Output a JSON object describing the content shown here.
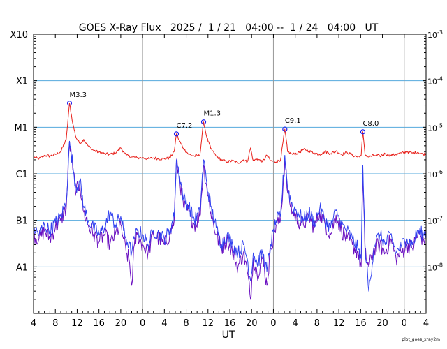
{
  "chart_data": {
    "type": "line",
    "title": "GOES X-Ray Flux   2025 /  1 / 21   04:00 --  1 / 24   04:00   UT",
    "xlabel": "UT",
    "footer": "plot_goes_xray2m",
    "x_range_hours": [
      0,
      72
    ],
    "y_scale": "log",
    "ylim": [
      1e-09,
      0.001
    ],
    "x_ticks": [
      "4",
      "8",
      "12",
      "16",
      "20",
      "0",
      "4",
      "8",
      "12",
      "16",
      "20",
      "0",
      "4",
      "8",
      "12",
      "16",
      "20",
      "0",
      "4"
    ],
    "x_tick_hours": [
      0,
      4,
      8,
      12,
      16,
      20,
      24,
      28,
      32,
      36,
      40,
      44,
      48,
      52,
      56,
      60,
      64,
      68,
      72
    ],
    "day_boundaries_hours": [
      20,
      44,
      68
    ],
    "left_axis": {
      "labels": [
        "X10",
        "X1",
        "M1",
        "C1",
        "B1",
        "A1"
      ],
      "values": [
        0.001,
        0.0001,
        1e-05,
        1e-06,
        1e-07,
        1e-08
      ]
    },
    "right_axis": {
      "labels": [
        {
          "base": "10",
          "exp": "-3",
          "value": 0.001
        },
        {
          "base": "10",
          "exp": "-4",
          "value": 0.0001
        },
        {
          "base": "10",
          "exp": "-5",
          "value": 1e-05
        },
        {
          "base": "10",
          "exp": "-6",
          "value": 1e-06
        },
        {
          "base": "10",
          "exp": "-7",
          "value": 1e-07
        },
        {
          "base": "10",
          "exp": "-8",
          "value": 1e-08
        }
      ]
    },
    "grid_lines": [
      0.0001,
      1e-05,
      1e-06,
      1e-07,
      1e-08
    ],
    "flares": [
      {
        "label": "M3.3",
        "hour": 6.6,
        "flux": 3.3e-05
      },
      {
        "label": "C7.2",
        "hour": 26.2,
        "flux": 7.2e-06
      },
      {
        "label": "M1.3",
        "hour": 31.2,
        "flux": 1.3e-05
      },
      {
        "label": "C9.1",
        "hour": 46.1,
        "flux": 9.1e-06
      },
      {
        "label": "C8.0",
        "hour": 60.4,
        "flux": 8e-06
      }
    ],
    "series": [
      {
        "color": "#e8201a",
        "points": [
          [
            0,
            2.3e-06
          ],
          [
            1,
            2.1e-06
          ],
          [
            2,
            2.5e-06
          ],
          [
            3,
            2.4e-06
          ],
          [
            4,
            2.6e-06
          ],
          [
            5,
            3e-06
          ],
          [
            6,
            5.5e-06
          ],
          [
            6.6,
            3.3e-05
          ],
          [
            7.2,
            1.2e-05
          ],
          [
            7.8,
            6e-06
          ],
          [
            8.5,
            4.5e-06
          ],
          [
            9.2,
            5.5e-06
          ],
          [
            10,
            4e-06
          ],
          [
            11,
            3.2e-06
          ],
          [
            12,
            2.9e-06
          ],
          [
            13,
            2.7e-06
          ],
          [
            14,
            2.6e-06
          ],
          [
            15,
            2.8e-06
          ],
          [
            16,
            3.6e-06
          ],
          [
            16.5,
            3e-06
          ],
          [
            17,
            2.5e-06
          ],
          [
            18,
            2.3e-06
          ],
          [
            19,
            2.2e-06
          ],
          [
            20,
            2.2e-06
          ],
          [
            21,
            2.1e-06
          ],
          [
            22,
            2.2e-06
          ],
          [
            23,
            2.1e-06
          ],
          [
            24,
            2.1e-06
          ],
          [
            25,
            2.2e-06
          ],
          [
            25.8,
            3e-06
          ],
          [
            26.2,
            7.2e-06
          ],
          [
            26.8,
            5e-06
          ],
          [
            27.5,
            3.5e-06
          ],
          [
            28.5,
            2.6e-06
          ],
          [
            29.5,
            2.4e-06
          ],
          [
            30.5,
            2.5e-06
          ],
          [
            31.2,
            1.3e-05
          ],
          [
            31.8,
            6e-06
          ],
          [
            32.5,
            3.5e-06
          ],
          [
            33.5,
            2.4e-06
          ],
          [
            34.5,
            2e-06
          ],
          [
            35.5,
            1.8e-06
          ],
          [
            36.5,
            1.9e-06
          ],
          [
            37.5,
            1.7e-06
          ],
          [
            38.5,
            2e-06
          ],
          [
            39.2,
            1.8e-06
          ],
          [
            39.8,
            3.6e-06
          ],
          [
            40.3,
            1.9e-06
          ],
          [
            41,
            2.1e-06
          ],
          [
            42,
            1.8e-06
          ],
          [
            42.8,
            2.5e-06
          ],
          [
            43.5,
            1.9e-06
          ],
          [
            44.5,
            1.8e-06
          ],
          [
            45.3,
            2e-06
          ],
          [
            46.1,
            9.1e-06
          ],
          [
            46.6,
            3e-06
          ],
          [
            47.5,
            2.6e-06
          ],
          [
            48.5,
            2.8e-06
          ],
          [
            49.5,
            3.3e-06
          ],
          [
            50.5,
            3.1e-06
          ],
          [
            51.5,
            2.8e-06
          ],
          [
            52.5,
            2.6e-06
          ],
          [
            53.5,
            3e-06
          ],
          [
            54.5,
            2.7e-06
          ],
          [
            55.5,
            3.1e-06
          ],
          [
            56.5,
            2.6e-06
          ],
          [
            57.5,
            2.9e-06
          ],
          [
            58.5,
            2.5e-06
          ],
          [
            59.5,
            2.3e-06
          ],
          [
            60.1,
            2.5e-06
          ],
          [
            60.4,
            8e-06
          ],
          [
            60.8,
            2.6e-06
          ],
          [
            61.5,
            2.3e-06
          ],
          [
            62.5,
            2.5e-06
          ],
          [
            63.5,
            2.4e-06
          ],
          [
            64.5,
            2.7e-06
          ],
          [
            65.5,
            2.5e-06
          ],
          [
            66.5,
            2.6e-06
          ],
          [
            67.5,
            2.8e-06
          ],
          [
            68.5,
            3e-06
          ],
          [
            69.5,
            2.8e-06
          ],
          [
            70.5,
            2.9e-06
          ],
          [
            71.5,
            2.6e-06
          ],
          [
            72,
            2.8e-06
          ]
        ]
      },
      {
        "color": "#6a0fc0",
        "points": [
          [
            0,
            5e-08
          ],
          [
            1,
            4e-08
          ],
          [
            2,
            6e-08
          ],
          [
            3,
            4e-08
          ],
          [
            4,
            7e-08
          ],
          [
            5,
            1e-07
          ],
          [
            6,
            1.8e-07
          ],
          [
            6.6,
            5e-06
          ],
          [
            7.2,
            1.2e-06
          ],
          [
            7.8,
            4e-07
          ],
          [
            8.5,
            6e-07
          ],
          [
            9.2,
            1.5e-07
          ],
          [
            10,
            8e-08
          ],
          [
            11,
            5e-08
          ],
          [
            12,
            3.5e-08
          ],
          [
            13,
            5e-08
          ],
          [
            14,
            3e-08
          ],
          [
            15,
            5e-08
          ],
          [
            16,
            8e-08
          ],
          [
            16.5,
            4e-08
          ],
          [
            17,
            2e-08
          ],
          [
            17.5,
            1.5e-08
          ],
          [
            18,
            4e-09
          ],
          [
            18.5,
            3e-08
          ],
          [
            19,
            5e-08
          ],
          [
            20,
            3e-08
          ],
          [
            21,
            2e-08
          ],
          [
            22,
            5e-08
          ],
          [
            23,
            4e-08
          ],
          [
            24,
            3e-08
          ],
          [
            25,
            5e-08
          ],
          [
            25.8,
            1e-07
          ],
          [
            26.2,
            1.8e-06
          ],
          [
            26.8,
            8e-07
          ],
          [
            27.5,
            2e-07
          ],
          [
            28.5,
            1.5e-07
          ],
          [
            29.5,
            8e-08
          ],
          [
            30.5,
            1.2e-07
          ],
          [
            31.2,
            1.5e-06
          ],
          [
            31.8,
            5e-07
          ],
          [
            32.5,
            1.5e-07
          ],
          [
            33.5,
            5e-08
          ],
          [
            34.5,
            2.5e-08
          ],
          [
            35.5,
            4e-08
          ],
          [
            36.5,
            2e-08
          ],
          [
            37.5,
            1e-08
          ],
          [
            38.5,
            2e-08
          ],
          [
            39.2,
            8e-09
          ],
          [
            39.8,
            2e-09
          ],
          [
            40.3,
            1.5e-08
          ],
          [
            41,
            7e-09
          ],
          [
            42,
            1.5e-08
          ],
          [
            42.8,
            4e-09
          ],
          [
            43.5,
            2.5e-08
          ],
          [
            44.5,
            8e-08
          ],
          [
            45.3,
            1e-07
          ],
          [
            46.1,
            2e-06
          ],
          [
            46.6,
            4e-07
          ],
          [
            47.5,
            1.5e-07
          ],
          [
            48.5,
            1e-07
          ],
          [
            49.5,
            8e-08
          ],
          [
            50.5,
            1.2e-07
          ],
          [
            51.5,
            7e-08
          ],
          [
            52.5,
            1.5e-07
          ],
          [
            53.5,
            8e-08
          ],
          [
            54.5,
            5e-08
          ],
          [
            55.5,
            1.3e-07
          ],
          [
            56.5,
            6e-08
          ],
          [
            57.5,
            4e-08
          ],
          [
            58.5,
            3e-08
          ],
          [
            59.5,
            2e-08
          ],
          [
            60.1,
            1e-08
          ],
          [
            60.4,
            1e-06
          ],
          [
            60.8,
            2e-08
          ],
          [
            61.5,
            1e-08
          ],
          [
            62.5,
            2.5e-08
          ],
          [
            63.5,
            3e-08
          ],
          [
            64.5,
            2e-08
          ],
          [
            65.5,
            4e-08
          ],
          [
            66.5,
            1.5e-08
          ],
          [
            67.5,
            2e-08
          ],
          [
            68.5,
            3e-08
          ],
          [
            69.5,
            2.5e-08
          ],
          [
            70.5,
            5e-08
          ],
          [
            71.5,
            4e-08
          ],
          [
            72,
            4e-08
          ]
        ]
      },
      {
        "color": "#3040f0",
        "points": [
          [
            0,
            7e-08
          ],
          [
            1,
            5e-08
          ],
          [
            2,
            8e-08
          ],
          [
            3,
            6e-08
          ],
          [
            4,
            9e-08
          ],
          [
            5,
            1.2e-07
          ],
          [
            6,
            2.5e-07
          ],
          [
            6.6,
            5e-06
          ],
          [
            7.2,
            1.5e-06
          ],
          [
            7.8,
            5e-07
          ],
          [
            8.5,
            7e-07
          ],
          [
            9.2,
            2e-07
          ],
          [
            10,
            1e-07
          ],
          [
            11,
            7e-08
          ],
          [
            12,
            5e-08
          ],
          [
            13,
            7e-08
          ],
          [
            14,
            1.5e-07
          ],
          [
            15,
            8e-08
          ],
          [
            16,
            1.2e-07
          ],
          [
            16.5,
            6e-08
          ],
          [
            17,
            4e-08
          ],
          [
            17.5,
            3e-08
          ],
          [
            18,
            2e-08
          ],
          [
            18.5,
            4e-08
          ],
          [
            19,
            6e-08
          ],
          [
            20,
            5e-08
          ],
          [
            21,
            3e-08
          ],
          [
            22,
            6e-08
          ],
          [
            23,
            5e-08
          ],
          [
            24,
            4e-08
          ],
          [
            25,
            6e-08
          ],
          [
            25.8,
            1.2e-07
          ],
          [
            26.2,
            2e-06
          ],
          [
            26.8,
            9e-07
          ],
          [
            27.5,
            3e-07
          ],
          [
            28.5,
            2e-07
          ],
          [
            29.5,
            1e-07
          ],
          [
            30.5,
            1.5e-07
          ],
          [
            31.2,
            2e-06
          ],
          [
            31.8,
            6e-07
          ],
          [
            32.5,
            2e-07
          ],
          [
            33.5,
            7e-08
          ],
          [
            34.5,
            3e-08
          ],
          [
            35.5,
            5e-08
          ],
          [
            36.5,
            3e-08
          ],
          [
            37.5,
            2e-08
          ],
          [
            38.5,
            3e-08
          ],
          [
            39.2,
            1.5e-08
          ],
          [
            39.8,
            5e-09
          ],
          [
            40.3,
            2e-08
          ],
          [
            41,
            1.2e-08
          ],
          [
            42,
            2e-08
          ],
          [
            42.8,
            8e-09
          ],
          [
            43.5,
            3e-08
          ],
          [
            44.5,
            1e-07
          ],
          [
            45.3,
            1.2e-07
          ],
          [
            46.1,
            2.5e-06
          ],
          [
            46.6,
            5e-07
          ],
          [
            47.5,
            2e-07
          ],
          [
            48.5,
            1.5e-07
          ],
          [
            49.5,
            1e-07
          ],
          [
            50.5,
            1.5e-07
          ],
          [
            51.5,
            9e-08
          ],
          [
            52.5,
            1.8e-07
          ],
          [
            53.5,
            1e-07
          ],
          [
            54.5,
            7e-08
          ],
          [
            55.5,
            1.6e-07
          ],
          [
            56.5,
            8e-08
          ],
          [
            57.5,
            6e-08
          ],
          [
            58.5,
            4e-08
          ],
          [
            59.5,
            2.5e-08
          ],
          [
            60.1,
            1.5e-08
          ],
          [
            60.4,
            1.5e-06
          ],
          [
            60.8,
            3e-08
          ],
          [
            61.5,
            3e-09
          ],
          [
            62.5,
            3e-08
          ],
          [
            63.5,
            5e-08
          ],
          [
            64.5,
            3e-08
          ],
          [
            65.5,
            5e-08
          ],
          [
            66.5,
            2e-08
          ],
          [
            67.5,
            3e-08
          ],
          [
            68.5,
            4e-08
          ],
          [
            69.5,
            3e-08
          ],
          [
            70.5,
            6e-08
          ],
          [
            71.5,
            5e-08
          ],
          [
            72,
            6e-08
          ]
        ]
      }
    ]
  }
}
